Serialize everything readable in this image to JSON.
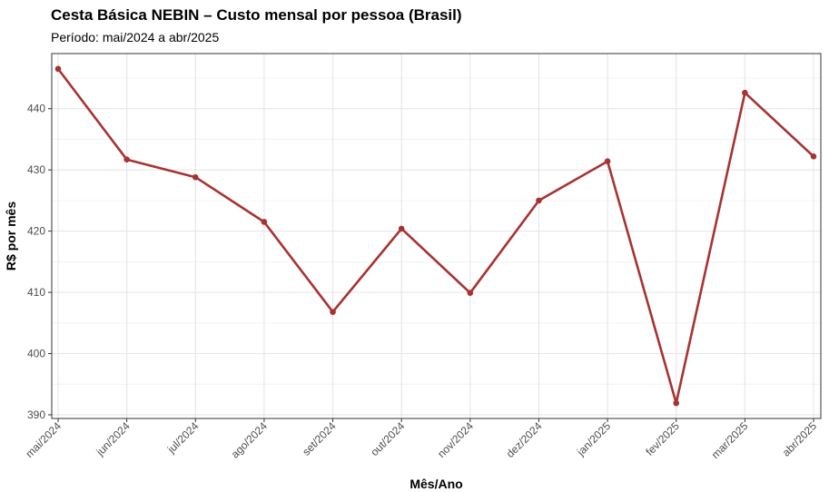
{
  "chart_data": {
    "type": "line",
    "title": "Cesta Básica NEBIN – Custo mensal por pessoa (Brasil)",
    "subtitle": "Período: mai/2024 a abr/2025",
    "xlabel": "Mês/Ano",
    "ylabel": "R$ por mês",
    "categories": [
      "mai/2024",
      "jun/2024",
      "jul/2024",
      "ago/2024",
      "set/2024",
      "out/2024",
      "nov/2024",
      "dez/2024",
      "jan/2025",
      "fev/2025",
      "mar/2025",
      "abr/2025"
    ],
    "values": [
      446.5,
      431.7,
      428.8,
      421.5,
      406.8,
      420.4,
      409.9,
      425.0,
      431.4,
      391.9,
      442.6,
      432.2
    ],
    "yticks": [
      390,
      400,
      410,
      420,
      430,
      440
    ],
    "ylim": [
      389.4,
      449.0
    ],
    "grid": true,
    "legend": "none",
    "line_color": "#a83232"
  }
}
